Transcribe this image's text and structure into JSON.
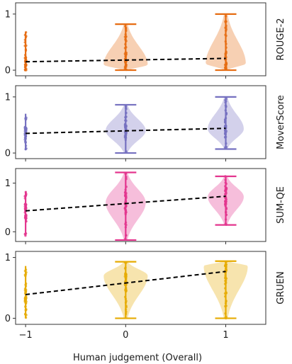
{
  "chart_data": {
    "type": "violin",
    "xlabel": "Human judgement (Overall)",
    "x_ticks": [
      -1,
      0,
      1
    ],
    "x_tick_labels": [
      "−1",
      "0",
      "1"
    ],
    "xlim": [
      -1.1,
      1.4
    ],
    "panels": [
      {
        "name": "ROUGE-2",
        "color": "#e66c12",
        "ylim": [
          -0.1,
          1.2
        ],
        "y_ticks": [
          0,
          1
        ],
        "y_tick_labels": [
          "0",
          "1"
        ],
        "trend": {
          "x": [
            -1,
            1
          ],
          "y": [
            0.15,
            0.21
          ]
        },
        "groups": [
          {
            "x": -1,
            "min": 0.0,
            "max": 0.68,
            "median": 0.12,
            "violin": false
          },
          {
            "x": 0,
            "min": 0.0,
            "max": 0.82,
            "median": 0.17,
            "violin": true,
            "mode": 0.1,
            "width": 0.22
          },
          {
            "x": 1,
            "min": 0.0,
            "max": 1.0,
            "median": 0.2,
            "violin": true,
            "mode": 0.12,
            "width": 0.2
          }
        ]
      },
      {
        "name": "MoverScore",
        "color": "#7570c0",
        "ylim": [
          -0.1,
          1.2
        ],
        "y_ticks": [
          0,
          1
        ],
        "y_tick_labels": [
          "0",
          "1"
        ],
        "trend": {
          "x": [
            -1,
            1
          ],
          "y": [
            0.35,
            0.44
          ]
        },
        "groups": [
          {
            "x": -1,
            "min": 0.05,
            "max": 0.7,
            "median": 0.36,
            "violin": false
          },
          {
            "x": 0,
            "min": 0.0,
            "max": 0.86,
            "median": 0.4,
            "violin": true,
            "mode": 0.4,
            "width": 0.2
          },
          {
            "x": 1,
            "min": 0.07,
            "max": 1.0,
            "median": 0.44,
            "violin": true,
            "mode": 0.43,
            "width": 0.18
          }
        ]
      },
      {
        "name": "SUM-QE",
        "color": "#e3358e",
        "ylim": [
          -0.2,
          1.3
        ],
        "y_ticks": [
          0,
          1
        ],
        "y_tick_labels": [
          "0",
          "1"
        ],
        "trend": {
          "x": [
            -1,
            1
          ],
          "y": [
            0.43,
            0.73
          ]
        },
        "groups": [
          {
            "x": -1,
            "min": -0.08,
            "max": 0.83,
            "median": 0.43,
            "violin": false
          },
          {
            "x": 0,
            "min": -0.17,
            "max": 1.22,
            "median": 0.58,
            "violin": true,
            "mode": 0.6,
            "width": 0.2
          },
          {
            "x": 1,
            "min": 0.14,
            "max": 1.14,
            "median": 0.73,
            "violin": true,
            "mode": 0.72,
            "width": 0.18
          }
        ]
      },
      {
        "name": "GRUEN",
        "color": "#e6ab02",
        "ylim": [
          -0.1,
          1.1
        ],
        "y_ticks": [
          0,
          1
        ],
        "y_tick_labels": [
          "0",
          "1"
        ],
        "trend": {
          "x": [
            -1,
            1
          ],
          "y": [
            0.39,
            0.77
          ]
        },
        "groups": [
          {
            "x": -1,
            "min": 0.0,
            "max": 0.86,
            "median": 0.39,
            "violin": false
          },
          {
            "x": 0,
            "min": 0.0,
            "max": 0.93,
            "median": 0.57,
            "violin": true,
            "mode": 0.7,
            "width": 0.22
          },
          {
            "x": 1,
            "min": 0.0,
            "max": 0.94,
            "median": 0.77,
            "violin": true,
            "mode": 0.86,
            "width": 0.22
          }
        ]
      }
    ]
  }
}
